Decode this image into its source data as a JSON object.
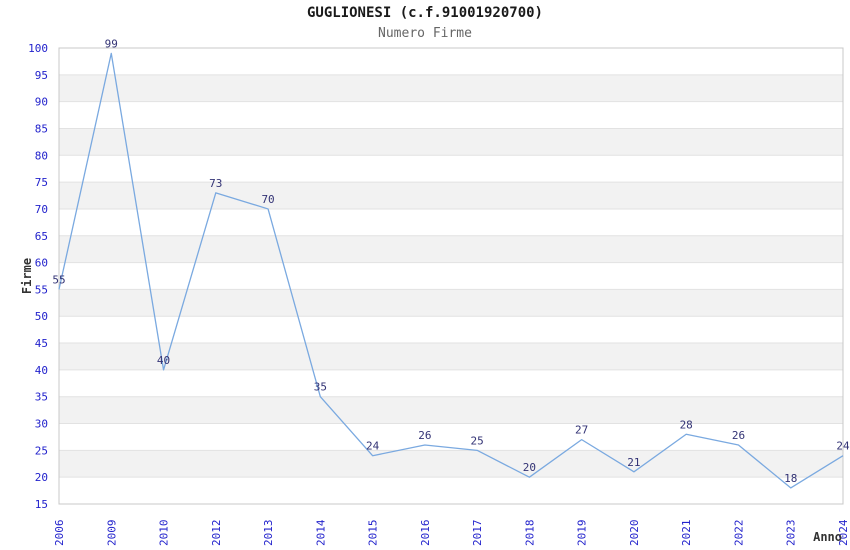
{
  "chart_data": {
    "type": "line",
    "title": "GUGLIONESI (c.f.91001920700)",
    "subtitle": "Numero Firme",
    "xlabel": "Anno",
    "ylabel": "Firme",
    "categories": [
      "2006",
      "2009",
      "2010",
      "2012",
      "2013",
      "2014",
      "2015",
      "2016",
      "2017",
      "2018",
      "2019",
      "2020",
      "2021",
      "2022",
      "2023",
      "2024"
    ],
    "series": [
      {
        "name": "Numero Firme",
        "values": [
          55,
          99,
          40,
          73,
          70,
          35,
          24,
          26,
          25,
          20,
          27,
          21,
          28,
          26,
          18,
          24
        ]
      }
    ],
    "ylim": [
      15,
      100
    ],
    "ytick_step": 5,
    "grid": "horizontal",
    "banded_rows": true,
    "point_labels": true,
    "legend": "none",
    "colors": {
      "line": "#7aa9e0",
      "point_label": "#333375",
      "tick_label": "#2222cc",
      "band": "#f2f2f2",
      "gridline": "#e2e2e2",
      "border": "#c8c8c8",
      "title": "#1a1a1a",
      "subtitle": "#666666",
      "axis_label": "#333333"
    }
  }
}
